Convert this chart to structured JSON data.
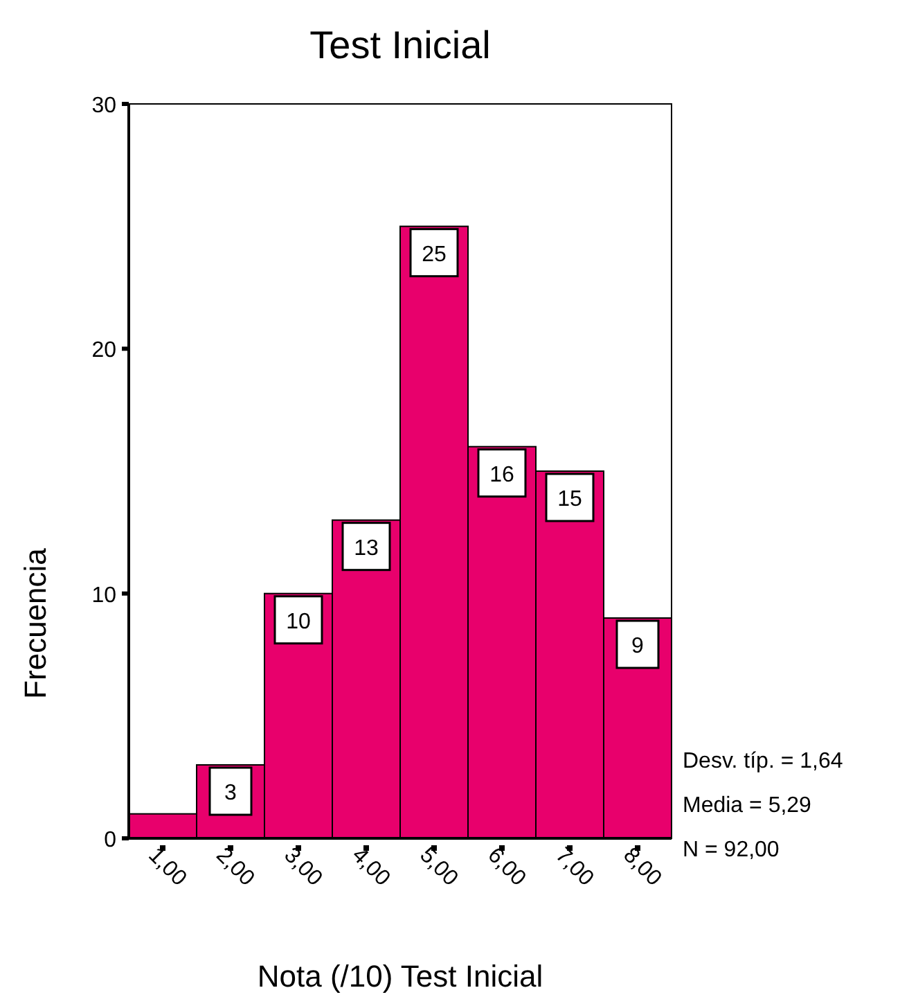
{
  "chart_data": {
    "type": "histogram",
    "title": "Test Inicial",
    "xlabel": "Nota (/10) Test Inicial",
    "ylabel": "Frecuencia",
    "bins": [
      0.5,
      1.5,
      2.5,
      3.5,
      4.5,
      5.5,
      6.5,
      7.5,
      8.5
    ],
    "values": [
      1,
      3,
      10,
      13,
      25,
      16,
      15,
      9
    ],
    "value_labels": [
      null,
      "3",
      "10",
      "13",
      "25",
      "16",
      "15",
      "9"
    ],
    "color": "#e8006c",
    "xlim": [
      0.5,
      8.5
    ],
    "xticks": [
      {
        "value": 1,
        "label": "1,00"
      },
      {
        "value": 2,
        "label": "2,00"
      },
      {
        "value": 3,
        "label": "3,00"
      },
      {
        "value": 4,
        "label": "4,00"
      },
      {
        "value": 5,
        "label": "5,00"
      },
      {
        "value": 6,
        "label": "6,00"
      },
      {
        "value": 7,
        "label": "7,00"
      },
      {
        "value": 8,
        "label": "8,00"
      }
    ],
    "ylim": [
      0,
      30
    ],
    "yticks": [
      0,
      10,
      20,
      30
    ],
    "grid": false,
    "annotations": [
      "Desv. típ. = 1,64",
      "Media = 5,29",
      "N = 92,00"
    ]
  }
}
